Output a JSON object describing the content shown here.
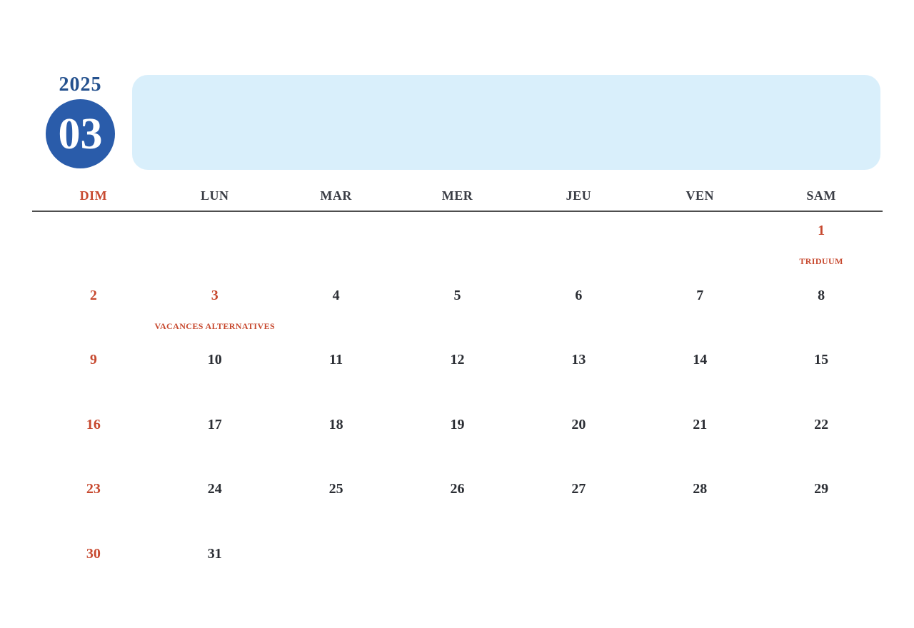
{
  "header": {
    "year": "2025",
    "month_number": "03"
  },
  "weekdays": [
    {
      "label": "DIM",
      "highlight": true
    },
    {
      "label": "LUN",
      "highlight": false
    },
    {
      "label": "MAR",
      "highlight": false
    },
    {
      "label": "MER",
      "highlight": false
    },
    {
      "label": "JEU",
      "highlight": false
    },
    {
      "label": "VEN",
      "highlight": false
    },
    {
      "label": "SAM",
      "highlight": false
    }
  ],
  "weeks": [
    [
      {
        "day": ""
      },
      {
        "day": ""
      },
      {
        "day": ""
      },
      {
        "day": ""
      },
      {
        "day": ""
      },
      {
        "day": ""
      },
      {
        "day": "1",
        "highlight": true,
        "note": "TRIDUUM"
      }
    ],
    [
      {
        "day": "2",
        "highlight": true
      },
      {
        "day": "3",
        "highlight": true,
        "note": "VACANCES ALTERNATIVES"
      },
      {
        "day": "4"
      },
      {
        "day": "5"
      },
      {
        "day": "6"
      },
      {
        "day": "7"
      },
      {
        "day": "8"
      }
    ],
    [
      {
        "day": "9",
        "highlight": true
      },
      {
        "day": "10"
      },
      {
        "day": "11"
      },
      {
        "day": "12"
      },
      {
        "day": "13"
      },
      {
        "day": "14"
      },
      {
        "day": "15"
      }
    ],
    [
      {
        "day": "16",
        "highlight": true
      },
      {
        "day": "17"
      },
      {
        "day": "18"
      },
      {
        "day": "19"
      },
      {
        "day": "20"
      },
      {
        "day": "21"
      },
      {
        "day": "22"
      }
    ],
    [
      {
        "day": "23",
        "highlight": true
      },
      {
        "day": "24"
      },
      {
        "day": "25"
      },
      {
        "day": "26"
      },
      {
        "day": "27"
      },
      {
        "day": "28"
      },
      {
        "day": "29"
      }
    ],
    [
      {
        "day": "30",
        "highlight": true
      },
      {
        "day": "31"
      },
      {
        "day": ""
      },
      {
        "day": ""
      },
      {
        "day": ""
      },
      {
        "day": ""
      },
      {
        "day": ""
      }
    ]
  ],
  "colors": {
    "accent_red": "#c7492f",
    "badge_blue": "#2a5caa",
    "year_blue": "#24518e",
    "banner_blue": "#d9effb",
    "text_dark": "#2b2e34",
    "header_dark": "#3a3d45"
  }
}
